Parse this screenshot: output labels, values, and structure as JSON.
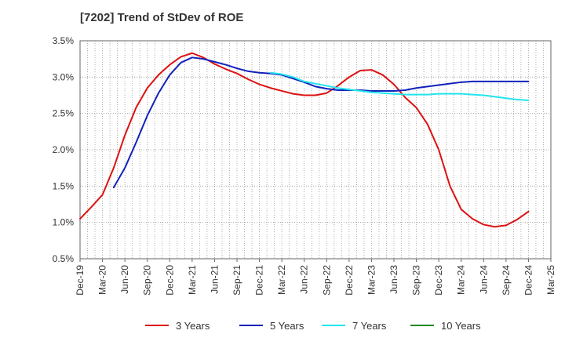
{
  "chart_data": {
    "type": "line",
    "title": "[7202]  Trend of StDev of ROE",
    "xlabel": "",
    "ylabel": "",
    "x_ticks": [
      "Dec-19",
      "Mar-20",
      "Jun-20",
      "Sep-20",
      "Dec-20",
      "Mar-21",
      "Jun-21",
      "Sep-21",
      "Dec-21",
      "Mar-22",
      "Jun-22",
      "Sep-22",
      "Dec-22",
      "Mar-23",
      "Jun-23",
      "Sep-23",
      "Dec-23",
      "Mar-24",
      "Jun-24",
      "Sep-24",
      "Dec-24",
      "Mar-25"
    ],
    "y_ticks": [
      "0.5%",
      "1.0%",
      "1.5%",
      "2.0%",
      "2.5%",
      "3.0%",
      "3.5%"
    ],
    "ylim": [
      0.5,
      3.5
    ],
    "grid": true,
    "legend_position": "bottom",
    "series": [
      {
        "name": "3 Years",
        "color": "#dd1111",
        "points": [
          [
            0,
            1.05
          ],
          [
            1,
            1.21
          ],
          [
            2,
            1.38
          ],
          [
            3,
            1.75
          ],
          [
            4,
            2.2
          ],
          [
            5,
            2.58
          ],
          [
            6,
            2.85
          ],
          [
            7,
            3.03
          ],
          [
            8,
            3.17
          ],
          [
            9,
            3.28
          ],
          [
            10,
            3.33
          ],
          [
            11,
            3.27
          ],
          [
            12,
            3.18
          ],
          [
            13,
            3.11
          ],
          [
            14,
            3.05
          ],
          [
            15,
            2.97
          ],
          [
            16,
            2.9
          ],
          [
            17,
            2.85
          ],
          [
            18,
            2.81
          ],
          [
            19,
            2.77
          ],
          [
            20,
            2.75
          ],
          [
            21,
            2.75
          ],
          [
            22,
            2.78
          ],
          [
            23,
            2.88
          ],
          [
            24,
            3.0
          ],
          [
            25,
            3.09
          ],
          [
            26,
            3.1
          ],
          [
            27,
            3.03
          ],
          [
            28,
            2.9
          ],
          [
            29,
            2.72
          ],
          [
            30,
            2.58
          ],
          [
            31,
            2.35
          ],
          [
            32,
            2.0
          ],
          [
            33,
            1.5
          ],
          [
            34,
            1.18
          ],
          [
            35,
            1.05
          ],
          [
            36,
            0.97
          ],
          [
            37,
            0.94
          ],
          [
            38,
            0.96
          ],
          [
            39,
            1.04
          ],
          [
            40,
            1.15
          ]
        ]
      },
      {
        "name": "5 Years",
        "color": "#1122bb",
        "points": [
          [
            3,
            1.48
          ],
          [
            4,
            1.75
          ],
          [
            5,
            2.1
          ],
          [
            6,
            2.47
          ],
          [
            7,
            2.78
          ],
          [
            8,
            3.03
          ],
          [
            9,
            3.2
          ],
          [
            10,
            3.27
          ],
          [
            11,
            3.25
          ],
          [
            12,
            3.21
          ],
          [
            13,
            3.17
          ],
          [
            14,
            3.12
          ],
          [
            15,
            3.08
          ],
          [
            16,
            3.06
          ],
          [
            17,
            3.05
          ],
          [
            18,
            3.03
          ],
          [
            19,
            2.98
          ],
          [
            20,
            2.93
          ],
          [
            21,
            2.87
          ],
          [
            22,
            2.84
          ],
          [
            23,
            2.82
          ],
          [
            24,
            2.82
          ],
          [
            25,
            2.82
          ],
          [
            26,
            2.81
          ],
          [
            27,
            2.81
          ],
          [
            28,
            2.81
          ],
          [
            29,
            2.82
          ],
          [
            30,
            2.85
          ],
          [
            31,
            2.87
          ],
          [
            32,
            2.89
          ],
          [
            33,
            2.91
          ],
          [
            34,
            2.93
          ],
          [
            35,
            2.94
          ],
          [
            36,
            2.94
          ],
          [
            37,
            2.94
          ],
          [
            38,
            2.94
          ],
          [
            39,
            2.94
          ],
          [
            40,
            2.94
          ]
        ]
      },
      {
        "name": "7 Years",
        "color": "#22e5ee",
        "points": [
          [
            17,
            3.06
          ],
          [
            18,
            3.04
          ],
          [
            19,
            3.0
          ],
          [
            20,
            2.94
          ],
          [
            21,
            2.91
          ],
          [
            22,
            2.88
          ],
          [
            23,
            2.85
          ],
          [
            24,
            2.83
          ],
          [
            25,
            2.81
          ],
          [
            26,
            2.79
          ],
          [
            27,
            2.78
          ],
          [
            28,
            2.77
          ],
          [
            29,
            2.76
          ],
          [
            30,
            2.76
          ],
          [
            31,
            2.76
          ],
          [
            32,
            2.77
          ],
          [
            33,
            2.77
          ],
          [
            34,
            2.77
          ],
          [
            35,
            2.76
          ],
          [
            36,
            2.75
          ],
          [
            37,
            2.73
          ],
          [
            38,
            2.71
          ],
          [
            39,
            2.69
          ],
          [
            40,
            2.68
          ]
        ]
      },
      {
        "name": "10 Years",
        "color": "#228822",
        "points": []
      }
    ]
  }
}
